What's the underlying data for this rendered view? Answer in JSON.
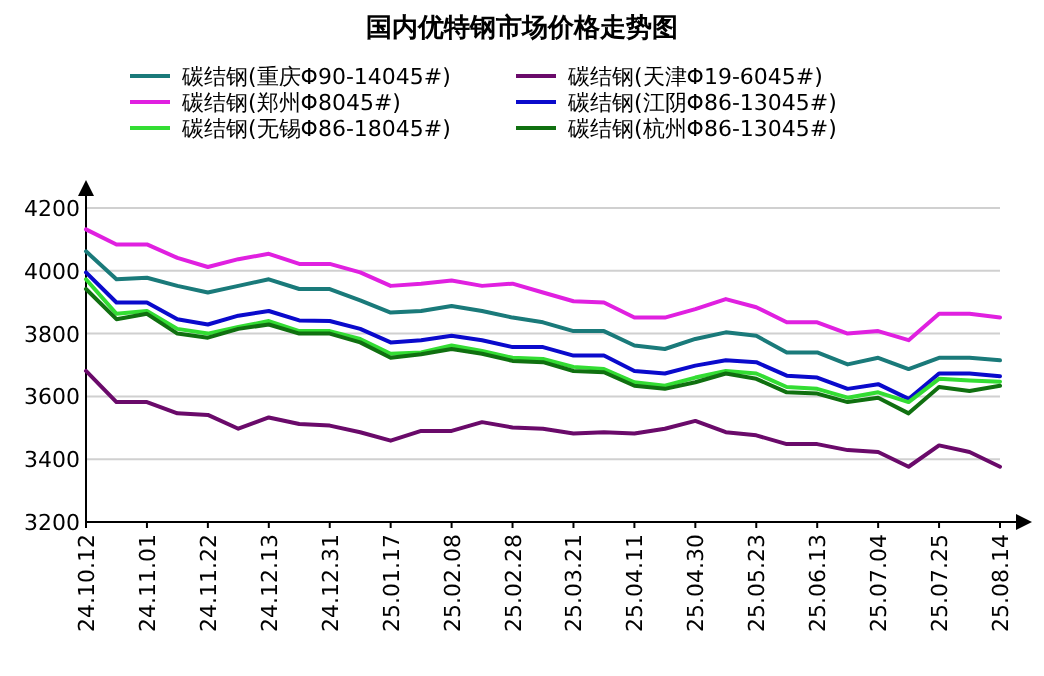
{
  "chart_data": {
    "type": "line",
    "title": "国内优特钢市场价格走势图",
    "categories": [
      "24.10.12",
      null,
      "24.11.01",
      null,
      "24.11.22",
      null,
      "24.12.13",
      null,
      "24.12.31",
      null,
      "25.01.17",
      null,
      "25.02.08",
      null,
      "25.02.28",
      null,
      "25.03.21",
      null,
      "25.04.11",
      null,
      "25.04.30",
      null,
      "25.05.23",
      null,
      "25.06.13",
      null,
      "25.07.04",
      null,
      "25.07.25",
      null,
      "25.08.14"
    ],
    "series": [
      {
        "name": "碳结钢(重庆Φ90-14045#)",
        "color": "#1a7a7a",
        "values": [
          4062,
          3973,
          3978,
          3952,
          3931,
          3952,
          3973,
          3942,
          3942,
          3906,
          3867,
          3872,
          3888,
          3872,
          3851,
          3836,
          3808,
          3808,
          3762,
          3751,
          3783,
          3804,
          3793,
          3740,
          3740,
          3702,
          3723,
          3687,
          3723,
          3723,
          3715
        ]
      },
      {
        "name": "碳结钢(天津Φ19-6045#)",
        "color": "#6a0a6a",
        "values": [
          3681,
          3582,
          3582,
          3546,
          3541,
          3497,
          3533,
          3512,
          3507,
          3486,
          3459,
          3490,
          3490,
          3518,
          3501,
          3497,
          3482,
          3486,
          3482,
          3497,
          3522,
          3486,
          3476,
          3448,
          3448,
          3429,
          3423,
          3376,
          3444,
          3423,
          3376
        ]
      },
      {
        "name": "碳结钢(郑州Φ8045#)",
        "color": "#e020e0",
        "values": [
          4132,
          4084,
          4084,
          4041,
          4012,
          4037,
          4054,
          4022,
          4022,
          3995,
          3952,
          3959,
          3969,
          3952,
          3959,
          3931,
          3903,
          3899,
          3851,
          3851,
          3878,
          3910,
          3884,
          3836,
          3836,
          3800,
          3808,
          3779,
          3863,
          3863,
          3851
        ]
      },
      {
        "name": "碳结钢(江阴Φ86-13045#)",
        "color": "#0a0acc",
        "values": [
          3995,
          3899,
          3899,
          3846,
          3829,
          3857,
          3872,
          3842,
          3840,
          3815,
          3772,
          3779,
          3793,
          3779,
          3757,
          3757,
          3730,
          3730,
          3681,
          3673,
          3698,
          3715,
          3709,
          3666,
          3660,
          3624,
          3639,
          3592,
          3673,
          3673,
          3664
        ]
      },
      {
        "name": "碳结钢(无锡Φ86-18045#)",
        "color": "#33dd33",
        "values": [
          3973,
          3863,
          3872,
          3815,
          3800,
          3821,
          3840,
          3808,
          3808,
          3783,
          3736,
          3740,
          3762,
          3745,
          3723,
          3719,
          3694,
          3687,
          3645,
          3634,
          3660,
          3681,
          3673,
          3630,
          3624,
          3596,
          3613,
          3582,
          3656,
          3651,
          3647
        ]
      },
      {
        "name": "碳结钢(杭州Φ86-13045#)",
        "color": "#107010",
        "values": [
          3942,
          3846,
          3863,
          3800,
          3787,
          3815,
          3829,
          3800,
          3800,
          3772,
          3723,
          3734,
          3751,
          3736,
          3713,
          3709,
          3681,
          3677,
          3634,
          3624,
          3645,
          3673,
          3656,
          3613,
          3609,
          3582,
          3596,
          3546,
          3630,
          3617,
          3634
        ]
      }
    ],
    "ylim": [
      3200,
      4200
    ],
    "yticks": [
      3200,
      3400,
      3600,
      3800,
      4000,
      4200
    ],
    "grid": "y",
    "legend": "top"
  }
}
